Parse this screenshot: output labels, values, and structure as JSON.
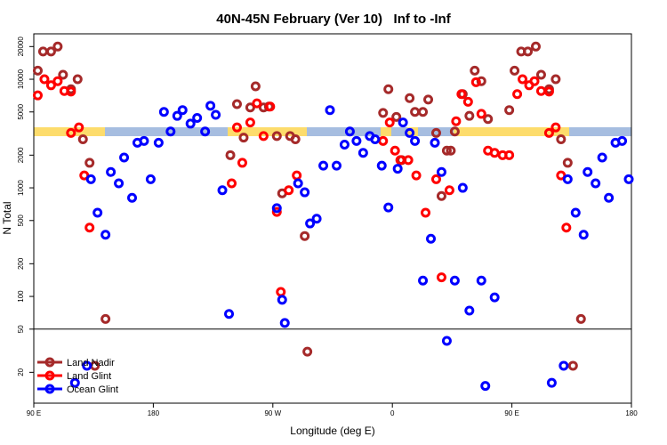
{
  "chart_data": {
    "type": "scatter",
    "title": "40N-45N February (Ver 10)   Inf to -Inf",
    "x_label": "Longitude (deg E)",
    "y_label": "N Total",
    "xlim": [
      90,
      540
    ],
    "xticks": [
      {
        "value": 90,
        "label": "90 E"
      },
      180,
      {
        "value": 270,
        "label": "90 W"
      },
      {
        "value": 360,
        "label": "0"
      },
      {
        "value": 450,
        "label": "90 E"
      },
      {
        "value": 540,
        "label": "180"
      }
    ],
    "ylim": [
      10.4,
      26200
    ],
    "y_scale": "log",
    "yticks": [
      20,
      50,
      100,
      200,
      500,
      1000,
      2000,
      5000,
      10000,
      20000
    ],
    "hline": 50,
    "legend": "bottom-left",
    "series": [
      {
        "name": "Land Nadir",
        "color": "#a52a2a",
        "x": [
          93,
          97,
          103,
          108,
          112,
          118,
          123,
          127,
          132,
          144,
          238,
          243,
          248,
          253,
          257,
          263,
          267,
          273,
          277,
          283,
          287,
          294,
          296,
          353,
          357,
          363,
          367,
          373,
          377,
          383,
          387,
          393,
          397,
          401,
          404,
          407,
          413,
          418,
          422,
          427,
          432,
          448,
          452,
          457,
          462,
          468,
          472,
          478,
          483,
          487,
          492,
          502,
          136,
          496
        ],
        "values": [
          12000,
          18000,
          18000,
          20000,
          11000,
          8100,
          10000,
          2800,
          1700,
          62,
          2000,
          5900,
          2900,
          5500,
          8600,
          5500,
          5600,
          3000,
          890,
          3000,
          2800,
          360,
          31,
          4900,
          8100,
          4500,
          1800,
          6700,
          5000,
          5000,
          6500,
          3200,
          840,
          2200,
          2200,
          3300,
          7300,
          4600,
          12000,
          9600,
          4300,
          5200,
          12000,
          18000,
          18000,
          20000,
          11000,
          8100,
          10000,
          2800,
          1700,
          62,
          23,
          23
        ]
      },
      {
        "name": "Land Glint",
        "color": "#ff0000",
        "x": [
          93,
          98,
          103,
          108,
          113,
          118,
          118,
          124,
          128,
          132,
          239,
          243,
          247,
          253,
          258,
          263,
          268,
          273,
          276,
          282,
          288,
          353,
          358,
          362,
          366,
          372,
          378,
          385,
          393,
          397,
          403,
          408,
          412,
          417,
          423,
          427,
          432,
          437,
          443,
          448,
          454,
          458,
          463,
          467,
          472,
          478,
          478,
          483,
          487,
          491
        ],
        "values": [
          7100,
          10000,
          8800,
          9600,
          7800,
          7700,
          3200,
          3600,
          1300,
          430,
          1100,
          3600,
          1700,
          4000,
          6000,
          3000,
          5600,
          600,
          110,
          950,
          1300,
          2700,
          4000,
          2200,
          1800,
          1800,
          1300,
          590,
          1200,
          150,
          950,
          4100,
          7300,
          6200,
          9400,
          4800,
          2200,
          2100,
          2000,
          2000,
          7300,
          10000,
          8800,
          9600,
          7800,
          7700,
          3200,
          3600,
          1300,
          430
        ]
      },
      {
        "name": "Ocean Glint",
        "color": "#0000ff",
        "x": [
          130,
          121,
          133,
          138,
          144,
          148,
          154,
          158,
          164,
          168,
          173,
          178,
          184,
          188,
          193,
          198,
          202,
          208,
          213,
          219,
          223,
          227,
          232,
          237,
          273,
          279,
          277,
          289,
          294,
          298,
          303,
          308,
          313,
          318,
          324,
          328,
          333,
          338,
          343,
          347,
          352,
          357,
          364,
          368,
          373,
          377,
          383,
          389,
          392,
          397,
          401,
          407,
          413,
          418,
          427,
          437,
          430,
          480,
          489,
          492,
          498,
          504,
          507,
          513,
          518,
          523,
          528,
          533,
          538
        ],
        "values": [
          23,
          16,
          1200,
          590,
          370,
          1400,
          1100,
          1900,
          810,
          2600,
          2700,
          1200,
          2600,
          5000,
          3300,
          4600,
          5200,
          3900,
          4400,
          3300,
          5700,
          4700,
          950,
          69,
          650,
          57,
          93,
          1100,
          910,
          470,
          520,
          1600,
          5200,
          1600,
          2500,
          3300,
          2700,
          2100,
          3000,
          2800,
          1600,
          660,
          1500,
          4000,
          3200,
          2700,
          140,
          340,
          2600,
          1400,
          39,
          140,
          1000,
          74,
          140,
          98,
          15,
          16,
          23,
          1200,
          590,
          370,
          1400,
          1100,
          1900,
          810,
          2600,
          2700,
          1200
        ]
      }
    ]
  }
}
